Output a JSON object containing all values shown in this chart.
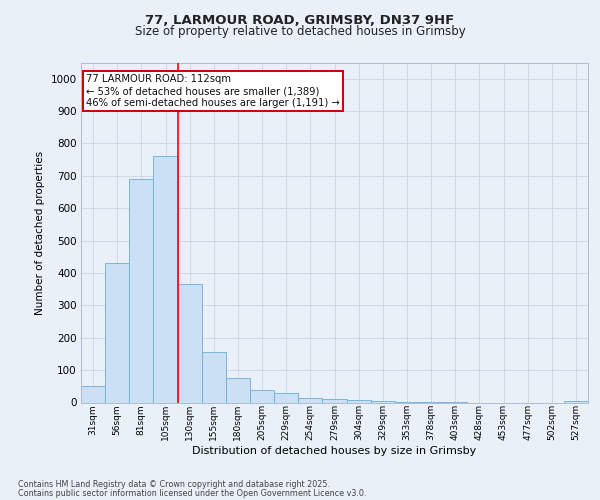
{
  "title1": "77, LARMOUR ROAD, GRIMSBY, DN37 9HF",
  "title2": "Size of property relative to detached houses in Grimsby",
  "xlabel": "Distribution of detached houses by size in Grimsby",
  "ylabel": "Number of detached properties",
  "categories": [
    "31sqm",
    "56sqm",
    "81sqm",
    "105sqm",
    "130sqm",
    "155sqm",
    "180sqm",
    "205sqm",
    "229sqm",
    "254sqm",
    "279sqm",
    "304sqm",
    "329sqm",
    "353sqm",
    "378sqm",
    "403sqm",
    "428sqm",
    "453sqm",
    "477sqm",
    "502sqm",
    "527sqm"
  ],
  "values": [
    50,
    430,
    690,
    760,
    365,
    155,
    75,
    40,
    30,
    15,
    12,
    8,
    5,
    2,
    2,
    1,
    0,
    0,
    0,
    0,
    5
  ],
  "bar_color": "#cce0f5",
  "bar_edge_color": "#6aaed6",
  "grid_color": "#d0d8e8",
  "background_color": "#eaf0f8",
  "red_line_x": 3.5,
  "annotation_text": "77 LARMOUR ROAD: 112sqm\n← 53% of detached houses are smaller (1,389)\n46% of semi-detached houses are larger (1,191) →",
  "annotation_box_color": "#ffffff",
  "annotation_box_edge": "#cc0000",
  "ylim": [
    0,
    1050
  ],
  "yticks": [
    0,
    100,
    200,
    300,
    400,
    500,
    600,
    700,
    800,
    900,
    1000
  ],
  "footer1": "Contains HM Land Registry data © Crown copyright and database right 2025.",
  "footer2": "Contains public sector information licensed under the Open Government Licence v3.0."
}
